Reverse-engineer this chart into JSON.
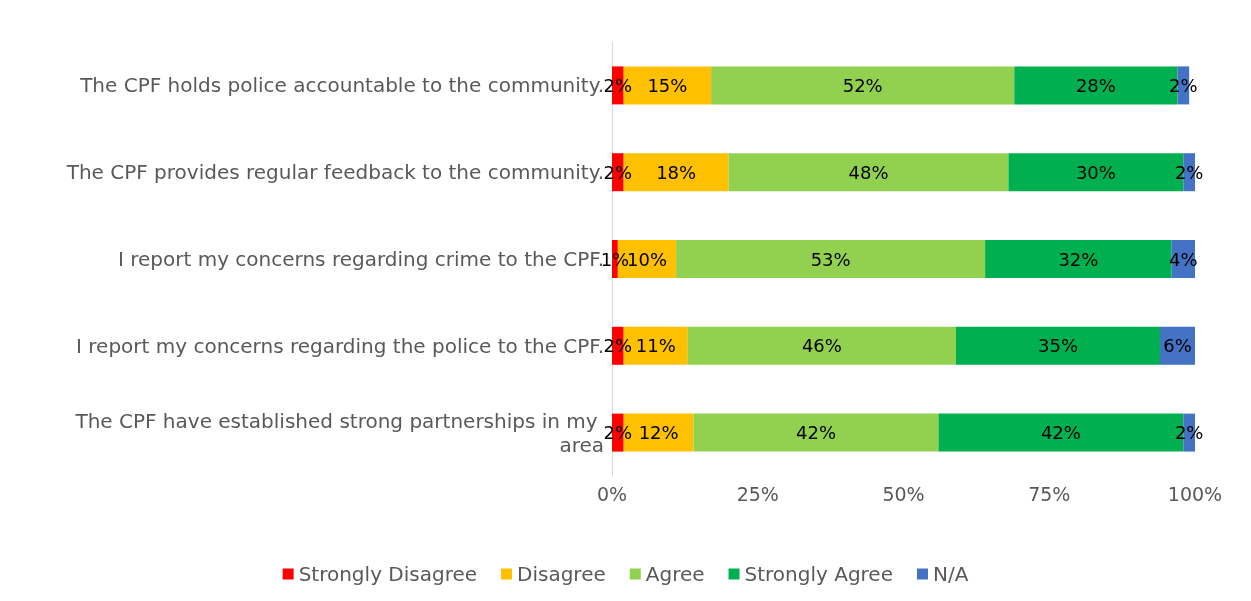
{
  "chart_data": {
    "type": "bar",
    "orientation": "horizontal",
    "stacked": true,
    "categories": [
      "The CPF holds police accountable to the community.",
      "The CPF provides regular feedback to the community.",
      "I report my concerns regarding crime to the CPF.",
      "I report my concerns regarding the police to the CPF.",
      "The CPF have established strong partnerships in my area"
    ],
    "series": [
      {
        "name": "Strongly Disagree",
        "color": "#ff0000",
        "values": [
          2,
          2,
          1,
          2,
          2
        ],
        "value_labels": [
          "2%",
          "2%",
          "1%",
          "2%",
          "2%"
        ]
      },
      {
        "name": "Disagree",
        "color": "#ffc000",
        "values": [
          15,
          18,
          10,
          11,
          12
        ],
        "value_labels": [
          "15%",
          "18%",
          "10%",
          "11%",
          "12%"
        ]
      },
      {
        "name": "Agree",
        "color": "#92d050",
        "values": [
          52,
          48,
          53,
          46,
          42
        ],
        "value_labels": [
          "52%",
          "48%",
          "53%",
          "46%",
          "42%"
        ]
      },
      {
        "name": "Strongly Agree",
        "color": "#00b050",
        "values": [
          28,
          30,
          32,
          35,
          42
        ],
        "value_labels": [
          "28%",
          "30%",
          "32%",
          "35%",
          "42%"
        ]
      },
      {
        "name": "N/A",
        "color": "#4472c4",
        "values": [
          2,
          2,
          4,
          6,
          2
        ],
        "value_labels": [
          "2%",
          "2%",
          "4%",
          "6%",
          "2%"
        ]
      }
    ],
    "xlim": [
      0,
      100
    ],
    "xticks": [
      {
        "value": 0,
        "label": "0%"
      },
      {
        "value": 25,
        "label": "25%"
      },
      {
        "value": 50,
        "label": "50%"
      },
      {
        "value": 75,
        "label": "75%"
      },
      {
        "value": 100,
        "label": "100%"
      }
    ],
    "grid": false,
    "legend": "bottom"
  }
}
